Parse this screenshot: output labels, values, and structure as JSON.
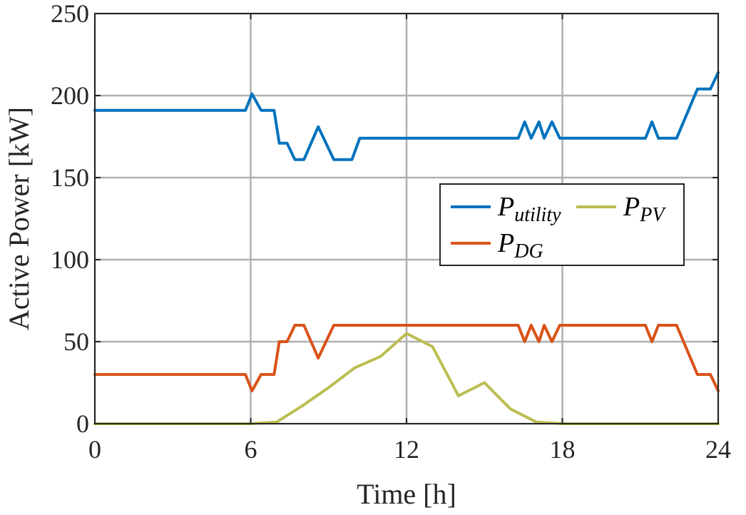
{
  "chart_data": {
    "type": "line",
    "title": "",
    "xlabel": "Time [h]",
    "ylabel": "Active Power [kW]",
    "xlim": [
      0,
      24
    ],
    "ylim": [
      0,
      250
    ],
    "xticks": [
      0,
      6,
      12,
      18,
      24
    ],
    "yticks": [
      0,
      50,
      100,
      150,
      200,
      250
    ],
    "grid": true,
    "legend_position": "center-right",
    "series": [
      {
        "name": "P_utility",
        "legend_main": "P",
        "legend_sub": "utility",
        "color": "#0072BD",
        "x": [
          0,
          5.8,
          6.05,
          6.4,
          6.9,
          7.1,
          7.4,
          7.7,
          8.05,
          8.6,
          9.2,
          9.9,
          10.2,
          16.3,
          16.55,
          16.8,
          17.1,
          17.3,
          17.6,
          17.9,
          21.2,
          21.45,
          21.7,
          22.4,
          23.2,
          23.7,
          24
        ],
        "y": [
          191,
          191,
          201,
          191,
          191,
          171,
          171,
          161,
          161,
          181,
          161,
          161,
          174,
          174,
          184,
          174,
          184,
          174,
          184,
          174,
          174,
          184,
          174,
          174,
          204,
          204,
          214
        ]
      },
      {
        "name": "P_DG",
        "legend_main": "P",
        "legend_sub": "DG",
        "color": "#D95319",
        "x": [
          0,
          5.8,
          6.05,
          6.4,
          6.9,
          7.1,
          7.4,
          7.7,
          8.05,
          8.6,
          9.2,
          9.9,
          10.2,
          16.3,
          16.55,
          16.8,
          17.1,
          17.3,
          17.6,
          17.9,
          21.2,
          21.45,
          21.7,
          22.4,
          23.2,
          23.7,
          24
        ],
        "y": [
          30,
          30,
          20,
          30,
          30,
          50,
          50,
          60,
          60,
          40,
          60,
          60,
          60,
          60,
          50,
          60,
          50,
          60,
          50,
          60,
          60,
          50,
          60,
          60,
          30,
          30,
          20
        ]
      },
      {
        "name": "P_PV",
        "legend_main": "P",
        "legend_sub": "PV",
        "color": "#BCBD52",
        "x": [
          0,
          6,
          7,
          8,
          9,
          10,
          11,
          12,
          13,
          14,
          15,
          16,
          17,
          18,
          24
        ],
        "y": [
          0,
          0,
          1,
          11,
          22,
          34,
          41,
          55,
          47,
          17,
          25,
          9,
          1,
          0,
          0
        ]
      }
    ]
  }
}
